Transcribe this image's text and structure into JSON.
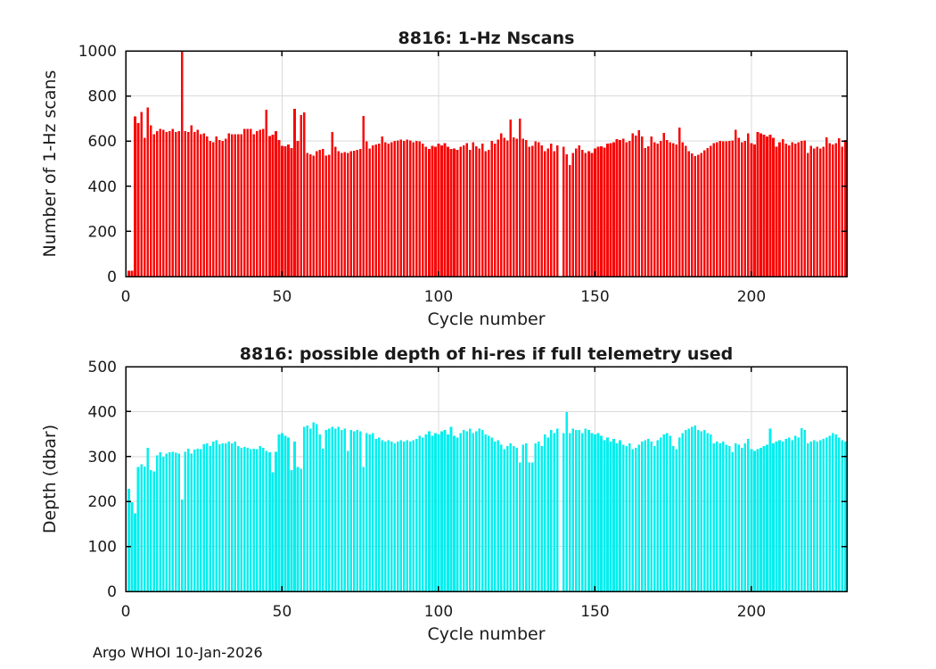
{
  "figure": {
    "footer": "Argo WHOI 10-Jan-2026",
    "background": "#ffffff",
    "axis_color": "#000000",
    "grid_color": "#d9d9d9",
    "text_color": "#1a1a1a"
  },
  "chart_data": [
    {
      "type": "bar",
      "title": "8816: 1-Hz Nscans",
      "xlabel": "Cycle number",
      "ylabel": "Number of 1-Hz scans",
      "bar_color": "#f70808",
      "xlim": [
        0,
        230.5
      ],
      "ylim": [
        0,
        1000
      ],
      "xticks": [
        0,
        50,
        100,
        150,
        200
      ],
      "yticks": [
        0,
        200,
        400,
        600,
        800,
        1000
      ],
      "grid": true,
      "legend": null,
      "x_first_cycle": 1,
      "note": "null value = missing cycle (gap in bars)",
      "values": [
        25,
        25,
        710,
        680,
        730,
        615,
        750,
        670,
        630,
        645,
        655,
        650,
        640,
        645,
        655,
        640,
        645,
        1000,
        645,
        640,
        670,
        640,
        650,
        630,
        635,
        620,
        600,
        595,
        620,
        605,
        600,
        610,
        635,
        630,
        630,
        630,
        630,
        655,
        655,
        655,
        630,
        645,
        650,
        655,
        740,
        622,
        628,
        645,
        605,
        580,
        578,
        585,
        570,
        744,
        600,
        715,
        728,
        548,
        541,
        535,
        555,
        561,
        565,
        535,
        540,
        641,
        575,
        555,
        548,
        552,
        548,
        555,
        557,
        561,
        565,
        711,
        599,
        568,
        581,
        585,
        588,
        621,
        595,
        588,
        595,
        600,
        603,
        606,
        600,
        606,
        603,
        595,
        600,
        598,
        588,
        575,
        565,
        580,
        575,
        588,
        581,
        590,
        575,
        565,
        568,
        561,
        575,
        581,
        590,
        561,
        595,
        577,
        568,
        588,
        555,
        561,
        600,
        588,
        607,
        635,
        615,
        603,
        695,
        617,
        611,
        700,
        611,
        605,
        575,
        580,
        598,
        595,
        581,
        555,
        568,
        588,
        555,
        581,
        null,
        575,
        541,
        495,
        548,
        568,
        581,
        561,
        548,
        555,
        548,
        568,
        575,
        578,
        572,
        588,
        590,
        595,
        608,
        605,
        610,
        595,
        600,
        635,
        625,
        648,
        620,
        570,
        577,
        621,
        595,
        588,
        600,
        637,
        605,
        595,
        590,
        585,
        660,
        595,
        580,
        555,
        545,
        533,
        540,
        547,
        560,
        570,
        580,
        590,
        595,
        600,
        598,
        598,
        600,
        603,
        650,
        615,
        595,
        600,
        635,
        590,
        585,
        640,
        635,
        628,
        621,
        628,
        615,
        575,
        595,
        608,
        588,
        581,
        595,
        588,
        595,
        600,
        603,
        548,
        580,
        568,
        575,
        568,
        575,
        617,
        590,
        585,
        590,
        613,
        575,
        605
      ]
    },
    {
      "type": "bar",
      "title": "8816: possible depth of hi-res if full telemetry used",
      "xlabel": "Cycle number",
      "ylabel": "Depth (dbar)",
      "bar_color": "#06eeee",
      "xlim": [
        0,
        230.5
      ],
      "ylim": [
        0,
        500
      ],
      "xticks": [
        0,
        50,
        100,
        150,
        200
      ],
      "yticks": [
        0,
        100,
        200,
        300,
        400,
        500
      ],
      "grid": true,
      "legend": null,
      "x_first_cycle": 1,
      "note": "null value = missing cycle (gap in bars)",
      "values": [
        228,
        198,
        174,
        277,
        283,
        278,
        319,
        270,
        267,
        303,
        310,
        300,
        307,
        310,
        311,
        309,
        307,
        204,
        311,
        317,
        307,
        315,
        317,
        316,
        327,
        329,
        323,
        333,
        336,
        327,
        329,
        329,
        333,
        329,
        333,
        323,
        319,
        321,
        319,
        316,
        317,
        316,
        323,
        319,
        313,
        310,
        265,
        311,
        349,
        352,
        346,
        342,
        270,
        333,
        277,
        273,
        366,
        369,
        362,
        376,
        372,
        349,
        317,
        359,
        362,
        366,
        362,
        366,
        359,
        362,
        313,
        359,
        356,
        359,
        356,
        277,
        352,
        349,
        352,
        339,
        342,
        336,
        333,
        336,
        333,
        329,
        333,
        336,
        333,
        336,
        333,
        336,
        339,
        346,
        342,
        349,
        356,
        346,
        352,
        349,
        356,
        359,
        349,
        366,
        346,
        342,
        352,
        359,
        356,
        362,
        352,
        356,
        362,
        359,
        349,
        346,
        342,
        333,
        336,
        326,
        316,
        323,
        329,
        323,
        319,
        287,
        326,
        329,
        287,
        287,
        329,
        333,
        323,
        349,
        342,
        359,
        352,
        362,
        null,
        352,
        399,
        352,
        362,
        359,
        359,
        352,
        362,
        359,
        352,
        349,
        352,
        346,
        336,
        342,
        333,
        339,
        329,
        336,
        326,
        323,
        329,
        316,
        319,
        326,
        333,
        336,
        339,
        333,
        323,
        336,
        342,
        349,
        352,
        346,
        323,
        316,
        342,
        352,
        359,
        362,
        366,
        369,
        359,
        356,
        359,
        352,
        349,
        329,
        333,
        329,
        333,
        326,
        323,
        310,
        329,
        326,
        319,
        329,
        339,
        316,
        313,
        316,
        319,
        323,
        326,
        362,
        329,
        333,
        336,
        333,
        339,
        342,
        336,
        346,
        342,
        363,
        359,
        329,
        333,
        336,
        333,
        336,
        339,
        342,
        346,
        352,
        349,
        342,
        336,
        333
      ]
    }
  ]
}
